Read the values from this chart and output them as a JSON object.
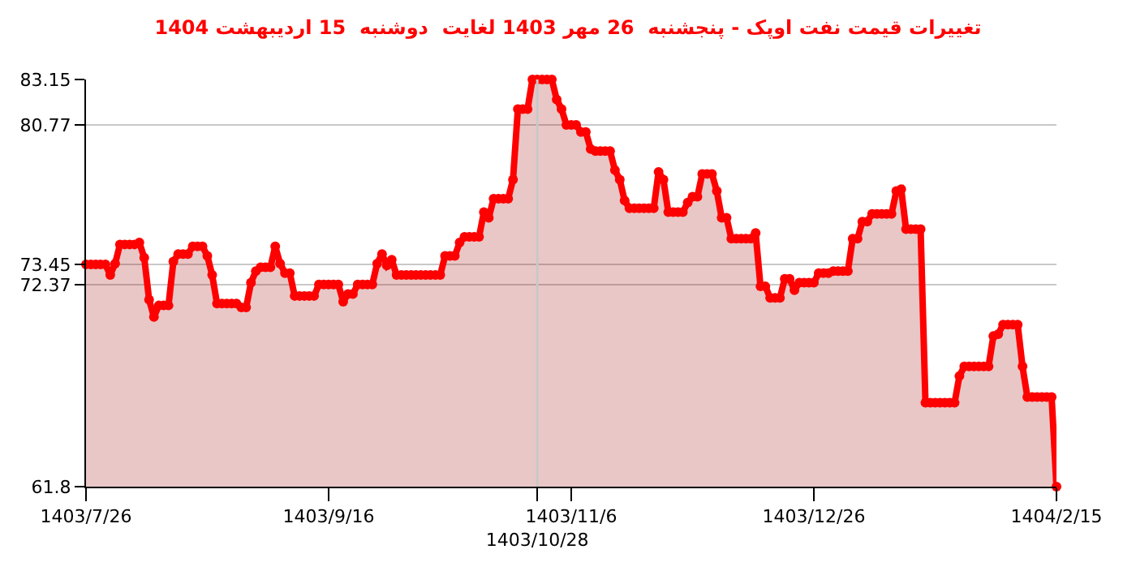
{
  "chart_data": {
    "type": "area",
    "title": "تغییرات قیمت نفت اوپک - پنجشنبه  26 مهر 1403 لغایت  دوشنبه  15 اردیبهشت 1404",
    "categories": [
      "1403/7/26",
      null,
      null,
      null,
      null,
      null,
      null,
      null,
      null,
      null,
      null,
      null,
      null,
      null,
      null,
      null,
      null,
      null,
      null,
      null,
      null,
      null,
      null,
      null,
      null,
      null,
      null,
      null,
      null,
      null,
      null,
      null,
      null,
      null,
      null,
      null,
      null,
      null,
      null,
      null,
      null,
      null,
      null,
      null,
      null,
      null,
      null,
      null,
      null,
      null,
      "1403/9/16",
      null,
      null,
      null,
      null,
      null,
      null,
      null,
      null,
      null,
      null,
      null,
      null,
      null,
      null,
      null,
      null,
      null,
      null,
      null,
      null,
      null,
      null,
      null,
      null,
      null,
      null,
      null,
      null,
      null,
      null,
      null,
      null,
      null,
      null,
      null,
      null,
      null,
      null,
      null,
      null,
      null,
      null,
      "1403/10/28",
      null,
      null,
      null,
      null,
      null,
      null,
      "1403/11/6",
      null,
      null,
      null,
      null,
      null,
      null,
      null,
      null,
      null,
      null,
      null,
      null,
      null,
      null,
      null,
      null,
      null,
      null,
      null,
      null,
      null,
      null,
      null,
      null,
      null,
      null,
      null,
      null,
      null,
      null,
      null,
      null,
      null,
      null,
      null,
      null,
      null,
      null,
      null,
      null,
      null,
      null,
      null,
      null,
      null,
      null,
      null,
      null,
      null,
      "1403/12/26",
      null,
      null,
      null,
      null,
      null,
      null,
      null,
      null,
      null,
      null,
      null,
      null,
      null,
      null,
      null,
      null,
      null,
      null,
      null,
      null,
      null,
      null,
      null,
      null,
      null,
      null,
      null,
      null,
      null,
      null,
      null,
      null,
      null,
      null,
      null,
      null,
      null,
      null,
      null,
      null,
      null,
      null,
      null,
      null,
      null,
      null,
      null,
      null,
      null,
      "1404/2/15"
    ],
    "series": [
      {
        "color": "#ff0000",
        "values": [
          73.45,
          73.45,
          73.45,
          73.45,
          73.45,
          72.9,
          73.5,
          74.5,
          74.5,
          74.5,
          74.5,
          74.6,
          73.8,
          71.6,
          70.7,
          71.3,
          71.3,
          71.3,
          73.6,
          74.0,
          74.0,
          74.0,
          74.4,
          74.4,
          74.4,
          73.9,
          72.9,
          71.4,
          71.4,
          71.4,
          71.4,
          71.4,
          71.2,
          71.2,
          72.5,
          73.1,
          73.3,
          73.3,
          73.3,
          74.4,
          73.5,
          73.0,
          73.0,
          71.8,
          71.8,
          71.8,
          71.8,
          71.8,
          72.4,
          72.4,
          72.4,
          72.4,
          72.4,
          71.5,
          71.9,
          71.9,
          72.4,
          72.4,
          72.4,
          72.4,
          73.5,
          74.0,
          73.4,
          73.7,
          72.9,
          72.9,
          72.9,
          72.9,
          72.9,
          72.9,
          72.9,
          72.9,
          72.9,
          72.9,
          73.9,
          73.9,
          73.9,
          74.6,
          74.9,
          74.9,
          74.9,
          74.9,
          76.2,
          75.9,
          76.9,
          76.9,
          76.9,
          76.9,
          77.9,
          81.6,
          81.6,
          81.6,
          83.15,
          83.15,
          83.15,
          83.15,
          83.15,
          82.1,
          81.6,
          80.77,
          80.77,
          80.77,
          80.4,
          80.4,
          79.5,
          79.4,
          79.4,
          79.4,
          79.4,
          78.4,
          77.9,
          76.8,
          76.4,
          76.4,
          76.4,
          76.4,
          76.4,
          76.4,
          78.3,
          77.9,
          76.2,
          76.2,
          76.2,
          76.2,
          76.7,
          77.0,
          77.0,
          78.2,
          78.2,
          78.2,
          77.3,
          75.9,
          75.9,
          74.8,
          74.8,
          74.8,
          74.8,
          74.8,
          75.1,
          72.3,
          72.3,
          71.7,
          71.7,
          71.7,
          72.7,
          72.7,
          72.1,
          72.5,
          72.5,
          72.5,
          72.5,
          73.0,
          73.0,
          73.0,
          73.1,
          73.1,
          73.1,
          73.1,
          74.8,
          74.8,
          75.7,
          75.7,
          76.1,
          76.1,
          76.1,
          76.1,
          76.1,
          77.3,
          77.4,
          75.3,
          75.3,
          75.3,
          75.3,
          66.2,
          66.2,
          66.2,
          66.2,
          66.2,
          66.2,
          66.2,
          67.6,
          68.1,
          68.1,
          68.1,
          68.1,
          68.1,
          68.1,
          69.7,
          69.8,
          70.3,
          70.3,
          70.3,
          70.3,
          68.1,
          66.5,
          66.5,
          66.5,
          66.5,
          66.5,
          66.5,
          61.8
        ]
      }
    ],
    "ylim": [
      61.8,
      83.15
    ],
    "yticks": [
      61.8,
      72.37,
      73.45,
      80.77,
      83.15
    ],
    "ref_lines": [
      {
        "axis": "x",
        "value": "1403/10/28",
        "color": "#c8c8c8"
      }
    ],
    "grid": "y",
    "marker": "circle",
    "line_style": "solid"
  }
}
